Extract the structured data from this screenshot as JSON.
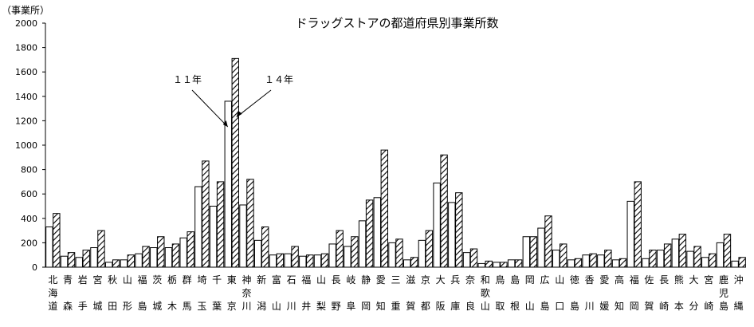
{
  "chart_data": {
    "type": "bar",
    "title": "ドラッグストアの都道府県別事業所数",
    "ylabel": "（事業所）",
    "xlabel": "",
    "ylim": [
      0,
      2000
    ],
    "yticks": [
      0,
      200,
      400,
      600,
      800,
      1000,
      1200,
      1400,
      1600,
      1800,
      2000
    ],
    "grid": false,
    "categories": [
      "北海道",
      "青森",
      "岩手",
      "宮城",
      "秋田",
      "山形",
      "福島",
      "茨城",
      "栃木",
      "群馬",
      "埼玉",
      "千葉",
      "東京",
      "神奈川",
      "新潟",
      "富山",
      "石川",
      "福井",
      "山梨",
      "長野",
      "岐阜",
      "静岡",
      "愛知",
      "三重",
      "滋賀",
      "京都",
      "大阪",
      "兵庫",
      "奈良",
      "和歌山",
      "鳥取",
      "島根",
      "岡山",
      "広島",
      "山口",
      "徳島",
      "香川",
      "愛媛",
      "高知",
      "福岡",
      "佐賀",
      "長崎",
      "熊本",
      "大分",
      "宮崎",
      "鹿児島",
      "沖縄"
    ],
    "series": [
      {
        "name": "１１年",
        "pattern": "white",
        "values": [
          330,
          90,
          80,
          160,
          40,
          60,
          110,
          160,
          160,
          240,
          660,
          500,
          1360,
          510,
          220,
          100,
          110,
          90,
          100,
          190,
          170,
          380,
          570,
          200,
          60,
          220,
          690,
          530,
          120,
          30,
          40,
          60,
          250,
          320,
          140,
          60,
          100,
          100,
          60,
          540,
          70,
          140,
          230,
          130,
          80,
          200,
          50
        ]
      },
      {
        "name": "１４年",
        "pattern": "hatched",
        "values": [
          440,
          120,
          140,
          300,
          60,
          100,
          170,
          250,
          190,
          290,
          870,
          700,
          1710,
          720,
          330,
          110,
          170,
          100,
          110,
          300,
          250,
          550,
          960,
          230,
          80,
          300,
          920,
          610,
          150,
          50,
          40,
          60,
          250,
          420,
          190,
          70,
          110,
          140,
          70,
          700,
          140,
          190,
          270,
          170,
          110,
          270,
          80
        ]
      }
    ],
    "annotations": [
      "１１年",
      "１４年"
    ],
    "colors": {
      "bar_11": "#ffffff",
      "bar_14_hatch": "#000000",
      "axis": "#000000"
    }
  }
}
